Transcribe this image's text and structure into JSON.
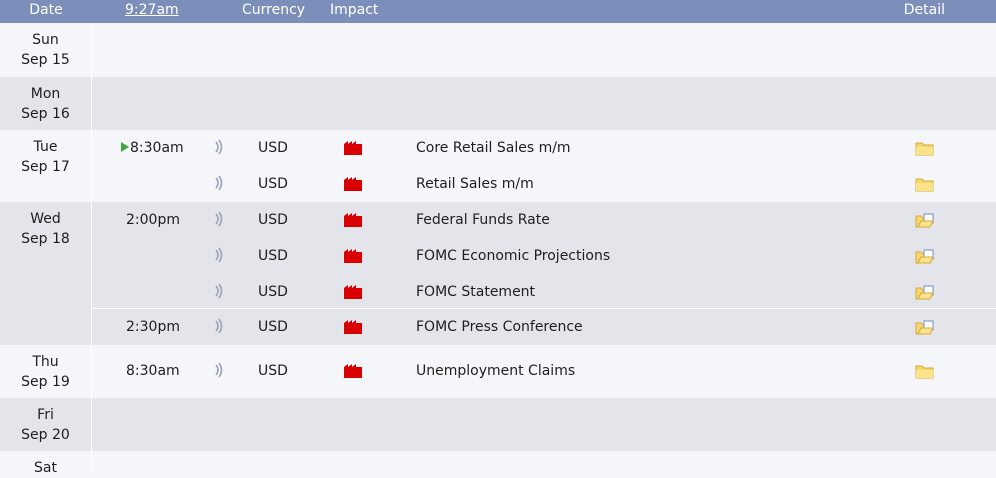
{
  "header": {
    "date_label": "Date",
    "time_label": "9:27am",
    "currency_label": "Currency",
    "impact_label": "Impact",
    "detail_label": "Detail"
  },
  "colors": {
    "header_bg": "#7c8eba",
    "high_impact": "#d80000",
    "current_event_marker": "#3fa93f",
    "folder": "#f7d66b"
  },
  "days": [
    {
      "weekday": "Sun",
      "date": "Sep 15",
      "events": []
    },
    {
      "weekday": "Mon",
      "date": "Sep 16",
      "events": []
    },
    {
      "weekday": "Tue",
      "date": "Sep 17",
      "events": [
        {
          "time": "8:30am",
          "current": true,
          "currency": "USD",
          "impact": "high",
          "title": "Core Retail Sales m/m",
          "detail_icon": "folder-icon"
        },
        {
          "time": "",
          "currency": "USD",
          "impact": "high",
          "title": "Retail Sales m/m",
          "detail_icon": "folder-icon"
        }
      ]
    },
    {
      "weekday": "Wed",
      "date": "Sep 18",
      "events": [
        {
          "time": "2:00pm",
          "currency": "USD",
          "impact": "high",
          "title": "Federal Funds Rate",
          "detail_icon": "folder-open-icon"
        },
        {
          "time": "",
          "currency": "USD",
          "impact": "high",
          "title": "FOMC Economic Projections",
          "detail_icon": "folder-open-icon"
        },
        {
          "time": "",
          "currency": "USD",
          "impact": "high",
          "title": "FOMC Statement",
          "detail_icon": "folder-open-icon"
        },
        {
          "time": "2:30pm",
          "currency": "USD",
          "impact": "high",
          "title": "FOMC Press Conference",
          "detail_icon": "folder-open-icon"
        }
      ]
    },
    {
      "weekday": "Thu",
      "date": "Sep 19",
      "events": [
        {
          "time": "8:30am",
          "currency": "USD",
          "impact": "high",
          "title": "Unemployment Claims",
          "detail_icon": "folder-icon"
        }
      ]
    },
    {
      "weekday": "Fri",
      "date": "Sep 20",
      "events": []
    },
    {
      "weekday": "Sat",
      "date": "",
      "events": []
    }
  ]
}
